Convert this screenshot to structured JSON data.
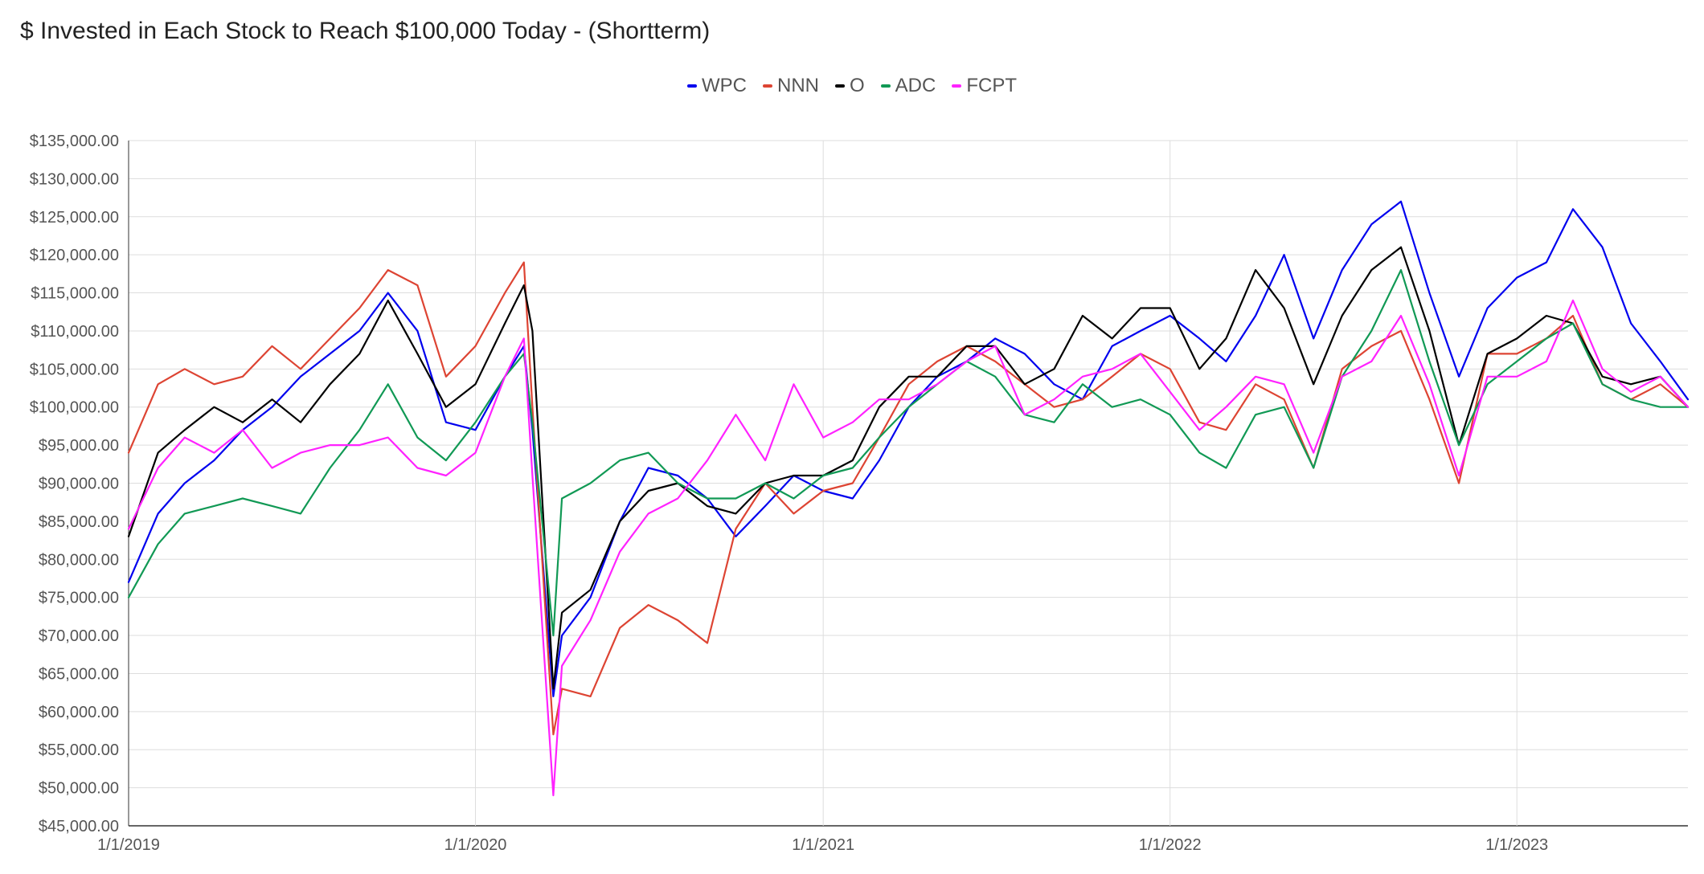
{
  "chart_data": {
    "type": "line",
    "title": "$ Invested in Each Stock to Reach $100,000 Today - (Shortterm)",
    "xlabel": "",
    "ylabel": "",
    "legend_position": "top-center",
    "grid": true,
    "ylim": [
      45000,
      135000
    ],
    "xlim": [
      "2019-01-01",
      "2023-06-30"
    ],
    "y_ticks": [
      45000,
      50000,
      55000,
      60000,
      65000,
      70000,
      75000,
      80000,
      85000,
      90000,
      95000,
      100000,
      105000,
      110000,
      115000,
      120000,
      125000,
      130000,
      135000
    ],
    "y_tick_labels": [
      "$45,000.00",
      "$50,000.00",
      "$55,000.00",
      "$60,000.00",
      "$65,000.00",
      "$70,000.00",
      "$75,000.00",
      "$80,000.00",
      "$85,000.00",
      "$90,000.00",
      "$95,000.00",
      "$100,000.00",
      "$105,000.00",
      "$110,000.00",
      "$115,000.00",
      "$120,000.00",
      "$125,000.00",
      "$130,000.00",
      "$135,000.00"
    ],
    "x_ticks": [
      "2019-01-01",
      "2020-01-01",
      "2021-01-01",
      "2022-01-01",
      "2023-01-01"
    ],
    "x_tick_labels": [
      "1/1/2019",
      "1/1/2020",
      "1/1/2021",
      "1/1/2022",
      "1/1/2023"
    ],
    "x": [
      "2019-01-01",
      "2019-02-01",
      "2019-03-01",
      "2019-04-01",
      "2019-05-01",
      "2019-06-01",
      "2019-07-01",
      "2019-08-01",
      "2019-09-01",
      "2019-10-01",
      "2019-11-01",
      "2019-12-01",
      "2020-01-01",
      "2020-02-01",
      "2020-02-21",
      "2020-03-01",
      "2020-03-23",
      "2020-04-01",
      "2020-05-01",
      "2020-06-01",
      "2020-07-01",
      "2020-08-01",
      "2020-09-01",
      "2020-10-01",
      "2020-11-01",
      "2020-12-01",
      "2021-01-01",
      "2021-02-01",
      "2021-03-01",
      "2021-04-01",
      "2021-05-01",
      "2021-06-01",
      "2021-07-01",
      "2021-08-01",
      "2021-09-01",
      "2021-10-01",
      "2021-11-01",
      "2021-12-01",
      "2022-01-01",
      "2022-02-01",
      "2022-03-01",
      "2022-04-01",
      "2022-05-01",
      "2022-06-01",
      "2022-07-01",
      "2022-08-01",
      "2022-09-01",
      "2022-10-01",
      "2022-11-01",
      "2022-12-01",
      "2023-01-01",
      "2023-02-01",
      "2023-03-01",
      "2023-04-01",
      "2023-05-01",
      "2023-06-01",
      "2023-06-30"
    ],
    "series": [
      {
        "name": "WPC",
        "color": "#0000ee",
        "values": [
          77000,
          86000,
          90000,
          93000,
          97000,
          100000,
          104000,
          107000,
          110000,
          115000,
          110000,
          98000,
          97000,
          104000,
          108000,
          97000,
          62000,
          70000,
          75000,
          85000,
          92000,
          91000,
          88000,
          83000,
          87000,
          91000,
          89000,
          88000,
          93000,
          100000,
          104000,
          106000,
          109000,
          107000,
          103000,
          101000,
          108000,
          110000,
          112000,
          109000,
          106000,
          112000,
          120000,
          109000,
          118000,
          124000,
          127000,
          115000,
          104000,
          113000,
          117000,
          119000,
          126000,
          121000,
          111000,
          106000,
          101000
        ]
      },
      {
        "name": "NNN",
        "color": "#dd4433",
        "values": [
          94000,
          103000,
          105000,
          103000,
          104000,
          108000,
          105000,
          109000,
          113000,
          118000,
          116000,
          104000,
          108000,
          115000,
          119000,
          100000,
          57000,
          63000,
          62000,
          71000,
          74000,
          72000,
          69000,
          84000,
          90000,
          86000,
          89000,
          90000,
          96000,
          103000,
          106000,
          108000,
          106000,
          103000,
          100000,
          101000,
          104000,
          107000,
          105000,
          98000,
          97000,
          103000,
          101000,
          92000,
          105000,
          108000,
          110000,
          101000,
          90000,
          107000,
          107000,
          109000,
          112000,
          103000,
          101000,
          103000,
          100000
        ]
      },
      {
        "name": "O",
        "color": "#000000",
        "values": [
          83000,
          94000,
          97000,
          100000,
          98000,
          101000,
          98000,
          103000,
          107000,
          114000,
          107000,
          100000,
          103000,
          111000,
          116000,
          110000,
          63000,
          73000,
          76000,
          85000,
          89000,
          90000,
          87000,
          86000,
          90000,
          91000,
          91000,
          93000,
          100000,
          104000,
          104000,
          108000,
          108000,
          103000,
          105000,
          112000,
          109000,
          113000,
          113000,
          105000,
          109000,
          118000,
          113000,
          103000,
          112000,
          118000,
          121000,
          110000,
          95000,
          107000,
          109000,
          112000,
          111000,
          104000,
          103000,
          104000,
          100000
        ]
      },
      {
        "name": "ADC",
        "color": "#119955",
        "values": [
          75000,
          82000,
          86000,
          87000,
          88000,
          87000,
          86000,
          92000,
          97000,
          103000,
          96000,
          93000,
          98000,
          104000,
          107000,
          98000,
          70000,
          88000,
          90000,
          93000,
          94000,
          90000,
          88000,
          88000,
          90000,
          88000,
          91000,
          92000,
          96000,
          100000,
          103000,
          106000,
          104000,
          99000,
          98000,
          103000,
          100000,
          101000,
          99000,
          94000,
          92000,
          99000,
          100000,
          92000,
          104000,
          110000,
          118000,
          106000,
          95000,
          103000,
          106000,
          109000,
          111000,
          103000,
          101000,
          100000,
          100000
        ]
      },
      {
        "name": "FCPT",
        "color": "#ff22ff",
        "values": [
          84000,
          92000,
          96000,
          94000,
          97000,
          92000,
          94000,
          95000,
          95000,
          96000,
          92000,
          91000,
          94000,
          104000,
          109000,
          91000,
          49000,
          66000,
          72000,
          81000,
          86000,
          88000,
          93000,
          99000,
          93000,
          103000,
          96000,
          98000,
          101000,
          101000,
          103000,
          106000,
          108000,
          99000,
          101000,
          104000,
          105000,
          107000,
          102000,
          97000,
          100000,
          104000,
          103000,
          94000,
          104000,
          106000,
          112000,
          103000,
          91000,
          104000,
          104000,
          106000,
          114000,
          105000,
          102000,
          104000,
          100000
        ]
      }
    ]
  }
}
